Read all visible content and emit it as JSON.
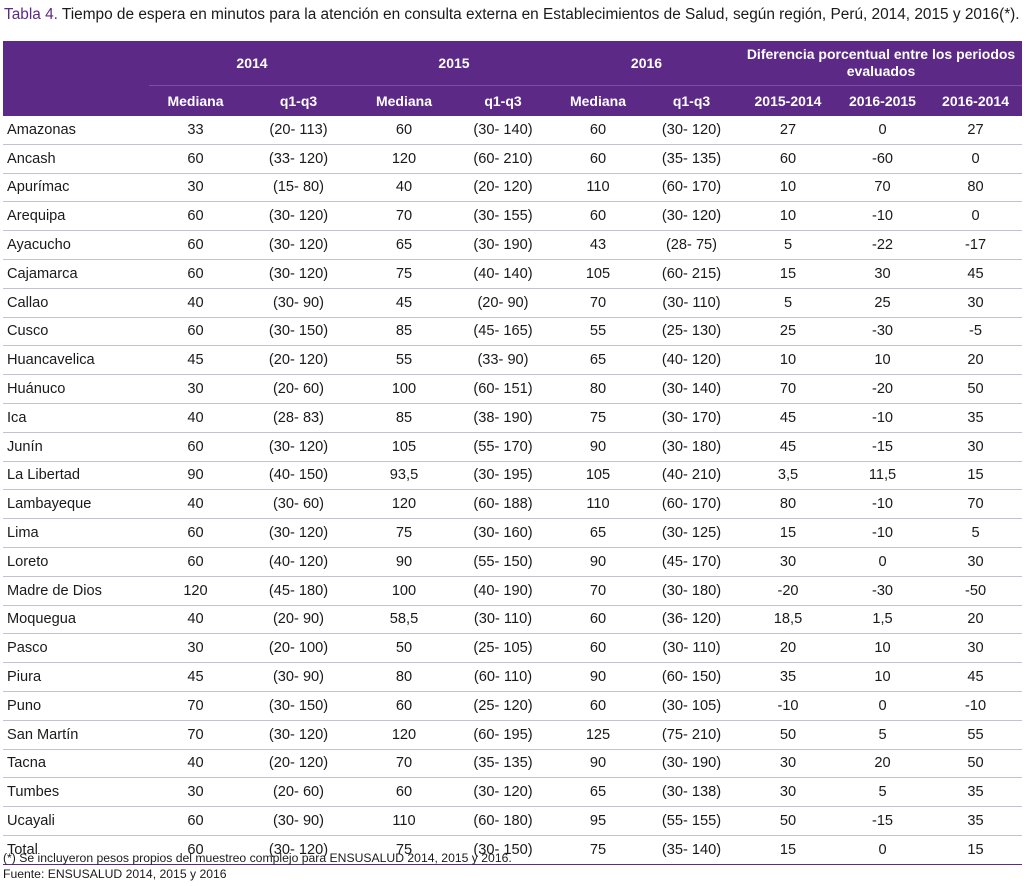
{
  "caption": {
    "label": "Tabla 4.",
    "text": " Tiempo de espera en minutos para la atención en consulta externa en Establecimientos de Salud, según región, Perú, 2014, 2015 y 2016(*)."
  },
  "table": {
    "group_headers": [
      "",
      "2014",
      "2015",
      "2016",
      "Diferencia porcentual entre los periodos evaluados"
    ],
    "sub_headers": [
      "Mediana",
      "q1-q3",
      "Mediana",
      "q1-q3",
      "Mediana",
      "q1-q3",
      "2015-2014",
      "2016-2015",
      "2016-2014"
    ],
    "rows": [
      [
        "Amazonas",
        "33",
        "(20- 113)",
        "60",
        "(30- 140)",
        "60",
        "(30- 120)",
        "27",
        "0",
        "27"
      ],
      [
        "Ancash",
        "60",
        "(33- 120)",
        "120",
        "(60- 210)",
        "60",
        "(35- 135)",
        "60",
        "-60",
        "0"
      ],
      [
        "Apurímac",
        "30",
        "(15- 80)",
        "40",
        "(20- 120)",
        "110",
        "(60- 170)",
        "10",
        "70",
        "80"
      ],
      [
        "Arequipa",
        "60",
        "(30- 120)",
        "70",
        "(30- 155)",
        "60",
        "(30- 120)",
        "10",
        "-10",
        "0"
      ],
      [
        "Ayacucho",
        "60",
        "(30- 120)",
        "65",
        "(30- 190)",
        "43",
        "(28- 75)",
        "5",
        "-22",
        "-17"
      ],
      [
        "Cajamarca",
        "60",
        "(30- 120)",
        "75",
        "(40- 140)",
        "105",
        "(60- 215)",
        "15",
        "30",
        "45"
      ],
      [
        "Callao",
        "40",
        "(30- 90)",
        "45",
        "(20- 90)",
        "70",
        "(30- 110)",
        "5",
        "25",
        "30"
      ],
      [
        "Cusco",
        "60",
        "(30- 150)",
        "85",
        "(45- 165)",
        "55",
        "(25- 130)",
        "25",
        "-30",
        "-5"
      ],
      [
        "Huancavelica",
        "45",
        "(20- 120)",
        "55",
        "(33- 90)",
        "65",
        "(40- 120)",
        "10",
        "10",
        "20"
      ],
      [
        "Huánuco",
        "30",
        "(20- 60)",
        "100",
        "(60- 151)",
        "80",
        "(30- 140)",
        "70",
        "-20",
        "50"
      ],
      [
        "Ica",
        "40",
        "(28- 83)",
        "85",
        "(38- 190)",
        "75",
        "(30- 170)",
        "45",
        "-10",
        "35"
      ],
      [
        "Junín",
        "60",
        "(30- 120)",
        "105",
        "(55- 170)",
        "90",
        "(30- 180)",
        "45",
        "-15",
        "30"
      ],
      [
        "La Libertad",
        "90",
        "(40- 150)",
        "93,5",
        "(30- 195)",
        "105",
        "(40- 210)",
        "3,5",
        "11,5",
        "15"
      ],
      [
        "Lambayeque",
        "40",
        "(30- 60)",
        "120",
        "(60- 188)",
        "110",
        "(60- 170)",
        "80",
        "-10",
        "70"
      ],
      [
        "Lima",
        "60",
        "(30- 120)",
        "75",
        "(30- 160)",
        "65",
        "(30- 125)",
        "15",
        "-10",
        "5"
      ],
      [
        "Loreto",
        "60",
        "(40- 120)",
        "90",
        "(55- 150)",
        "90",
        "(45- 170)",
        "30",
        "0",
        "30"
      ],
      [
        "Madre de Dios",
        "120",
        "(45- 180)",
        "100",
        "(40- 190)",
        "70",
        "(30- 180)",
        "-20",
        "-30",
        "-50"
      ],
      [
        "Moquegua",
        "40",
        "(20- 90)",
        "58,5",
        "(30- 110)",
        "60",
        "(36- 120)",
        "18,5",
        "1,5",
        "20"
      ],
      [
        "Pasco",
        "30",
        "(20- 100)",
        "50",
        "(25- 105)",
        "60",
        "(30- 110)",
        "20",
        "10",
        "30"
      ],
      [
        "Piura",
        "45",
        "(30- 90)",
        "80",
        "(60- 110)",
        "90",
        "(60- 150)",
        "35",
        "10",
        "45"
      ],
      [
        "Puno",
        "70",
        "(30- 150)",
        "60",
        "(25- 120)",
        "60",
        "(30- 105)",
        "-10",
        "0",
        "-10"
      ],
      [
        "San Martín",
        "70",
        "(30- 120)",
        "120",
        "(60- 195)",
        "125",
        "(75- 210)",
        "50",
        "5",
        "55"
      ],
      [
        "Tacna",
        "40",
        "(20- 120)",
        "70",
        "(35- 135)",
        "90",
        "(30- 190)",
        "30",
        "20",
        "50"
      ],
      [
        "Tumbes",
        "30",
        "(20- 60)",
        "60",
        "(30- 120)",
        "65",
        "(30- 138)",
        "30",
        "5",
        "35"
      ],
      [
        "Ucayali",
        "60",
        "(30- 90)",
        "110",
        "(60- 180)",
        "95",
        "(55- 155)",
        "50",
        "-15",
        "35"
      ],
      [
        "Total",
        "60",
        "(30- 120)",
        "75",
        "(30- 150)",
        "75",
        "(35- 140)",
        "15",
        "0",
        "15"
      ]
    ]
  },
  "notes": {
    "footnote": "(*) Se incluyeron pesos propios del muestreo complejo para ENSUSALUD 2014, 2015 y 2016.",
    "source": "Fuente: ENSUSALUD 2014, 2015 y 2016"
  },
  "colors": {
    "header_bg": "#5c2a86",
    "header_text": "#ffffff",
    "caption_label": "#5c2a86",
    "row_rule": "#c9bfd4"
  }
}
